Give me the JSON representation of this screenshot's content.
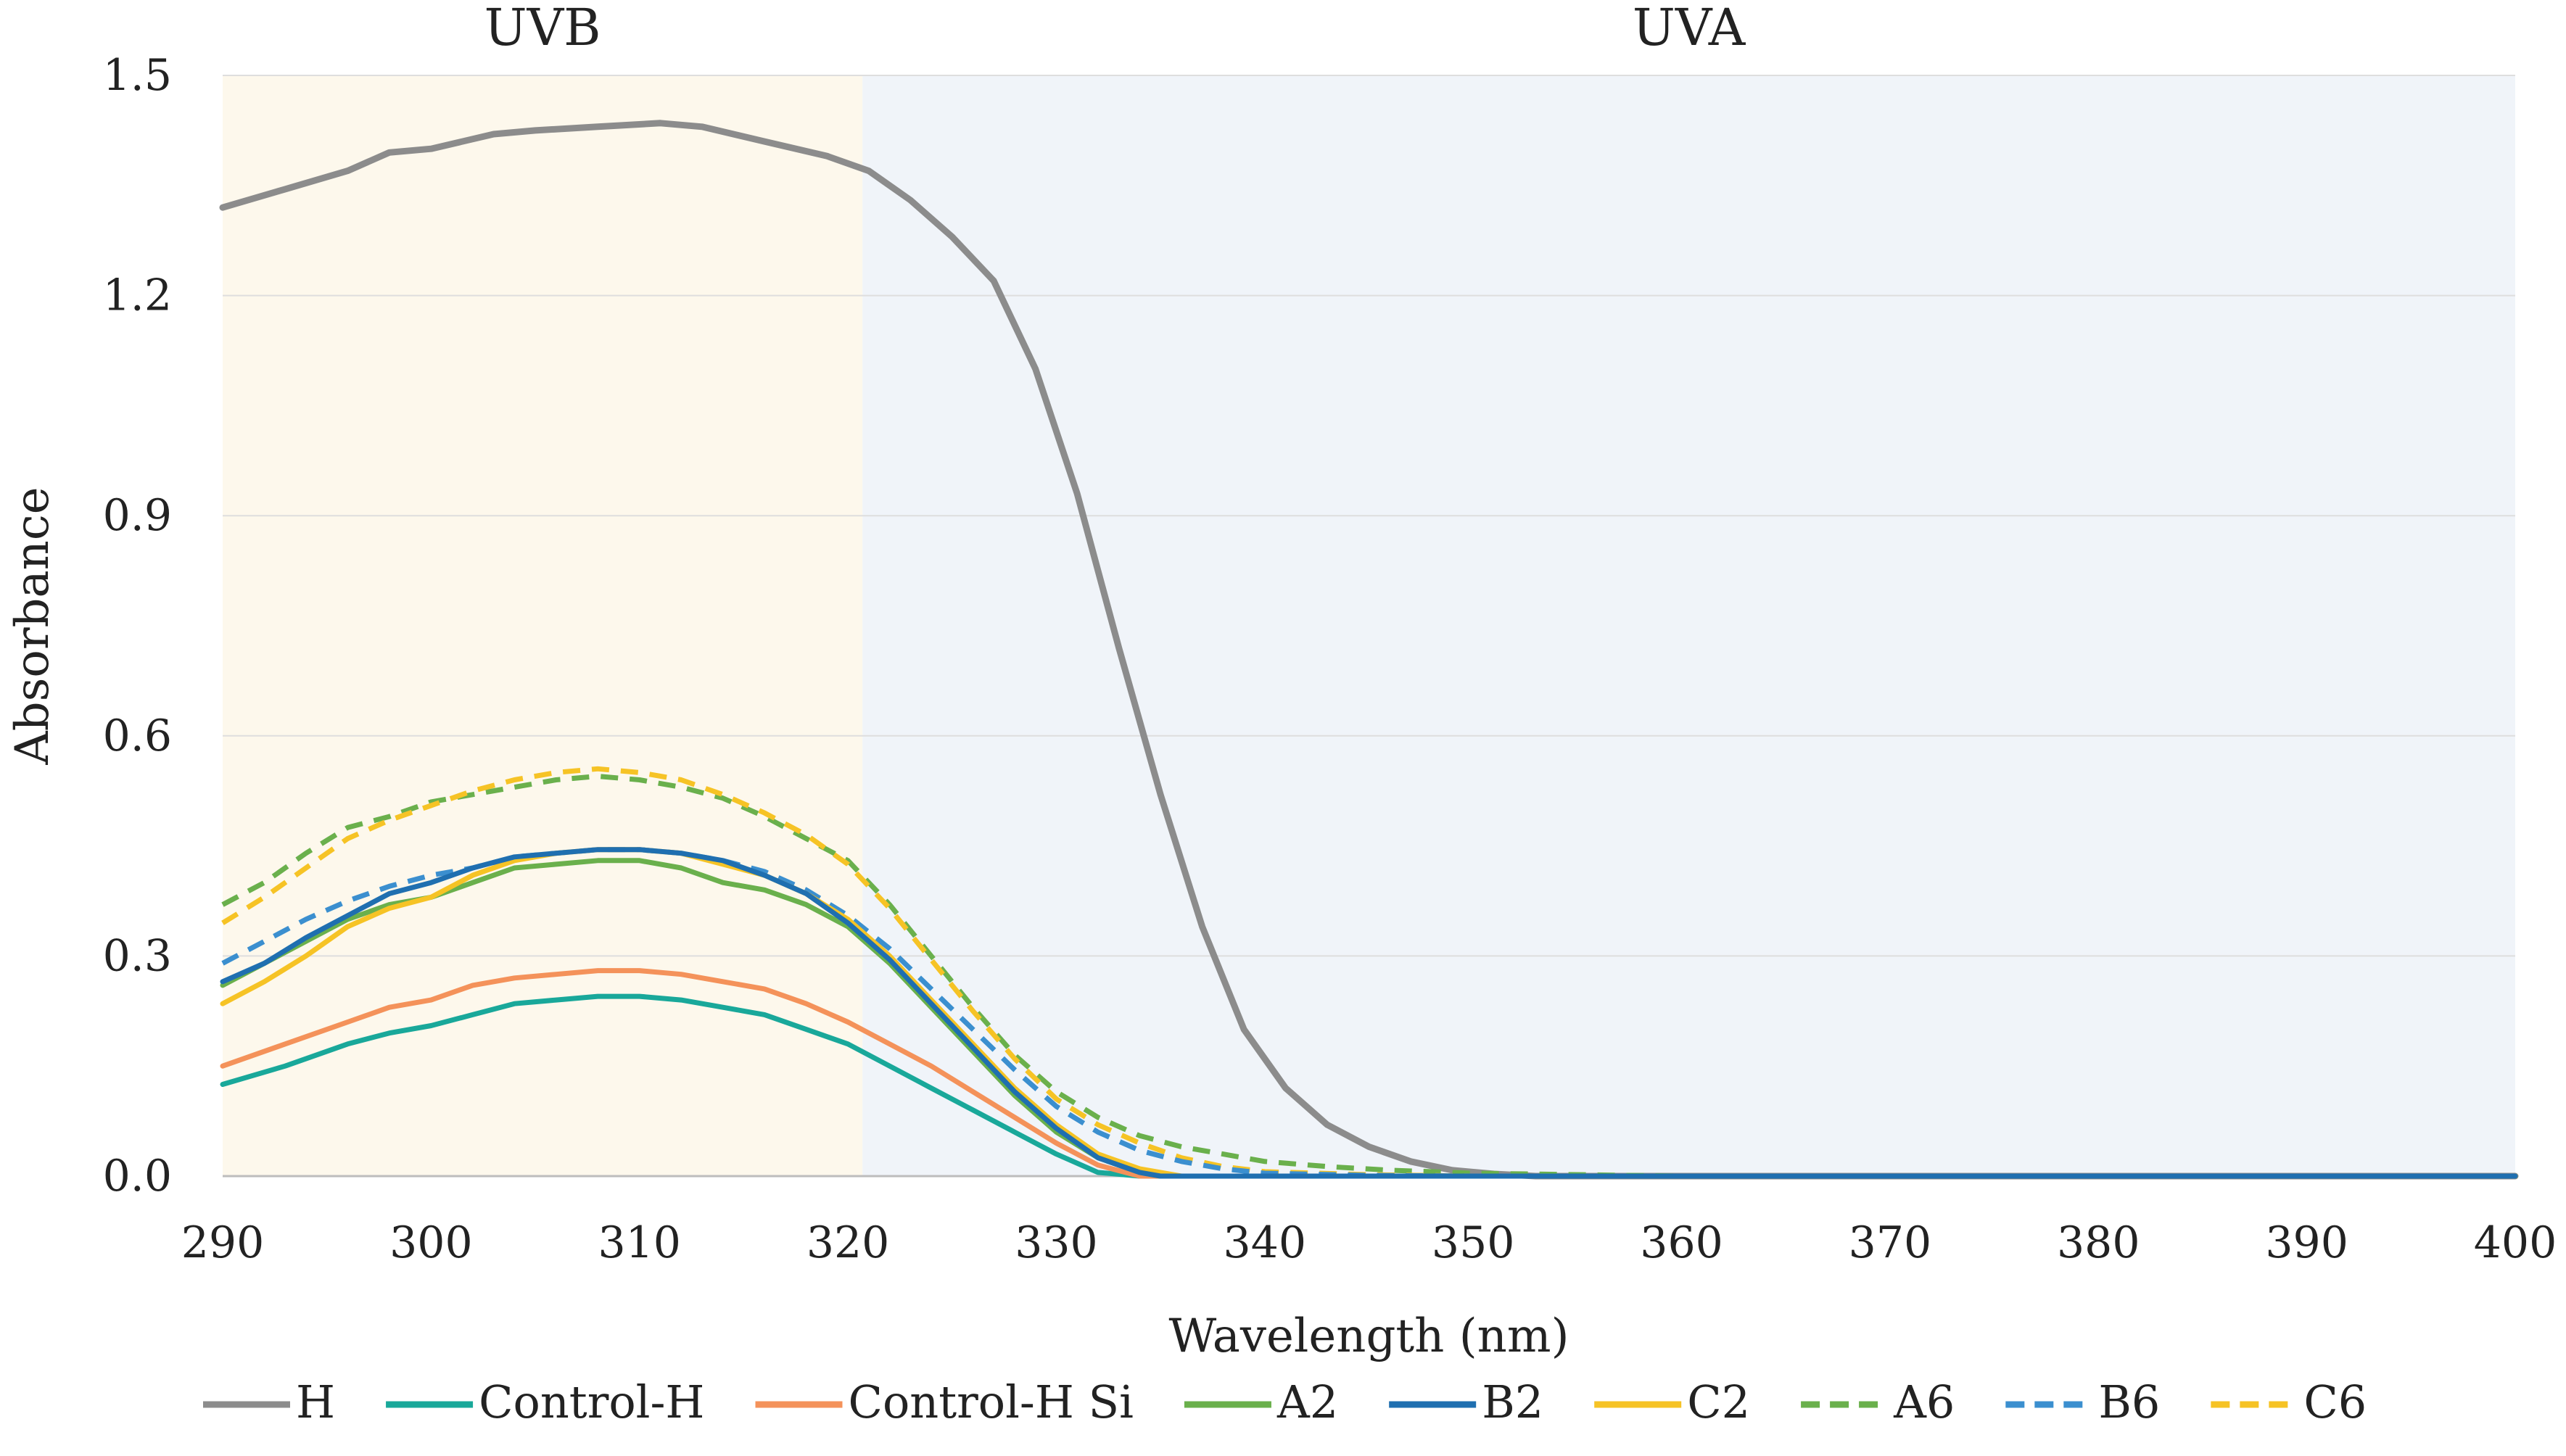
{
  "chart_data": {
    "type": "line",
    "title": "",
    "xlabel": "Wavelength (nm)",
    "ylabel": "Absorbance",
    "xlim": [
      290,
      400
    ],
    "ylim": [
      0.0,
      1.5
    ],
    "xticks": [
      290,
      300,
      310,
      320,
      330,
      340,
      350,
      360,
      370,
      380,
      390,
      400
    ],
    "yticks": [
      "0.0",
      "0.3",
      "0.6",
      "0.9",
      "1.2",
      "1.5"
    ],
    "grid": "horizontal",
    "legend_position": "bottom",
    "regions": [
      {
        "label": "UVB",
        "from": 290,
        "to": 320.7,
        "color": "#fdf8ec"
      },
      {
        "label": "UVA",
        "from": 320.7,
        "to": 400,
        "color": "#f0f4f9"
      }
    ],
    "series": [
      {
        "name": "H",
        "color": "#8c8c8c",
        "dash": "solid",
        "x": [
          290,
          293,
          296,
          298,
          300,
          303,
          305,
          308,
          311,
          313,
          316,
          319,
          321,
          323,
          325,
          327,
          329,
          331,
          333,
          335,
          337,
          339,
          341,
          343,
          345,
          347,
          349,
          351,
          353,
          355,
          360,
          370,
          380,
          390,
          400
        ],
        "y": [
          1.32,
          1.345,
          1.37,
          1.395,
          1.4,
          1.42,
          1.425,
          1.43,
          1.435,
          1.43,
          1.41,
          1.39,
          1.37,
          1.33,
          1.28,
          1.22,
          1.1,
          0.93,
          0.72,
          0.52,
          0.34,
          0.2,
          0.12,
          0.07,
          0.04,
          0.02,
          0.008,
          0.003,
          0.0,
          0.0,
          0.0,
          0.0,
          0.0,
          0.0,
          0.0
        ]
      },
      {
        "name": "Control-H",
        "color": "#19a89a",
        "dash": "solid",
        "x": [
          290,
          293,
          296,
          298,
          300,
          302,
          304,
          306,
          308,
          310,
          312,
          314,
          316,
          318,
          320,
          322,
          324,
          326,
          328,
          330,
          332,
          334,
          340,
          350,
          360,
          370,
          380,
          390,
          400
        ],
        "y": [
          0.125,
          0.15,
          0.18,
          0.195,
          0.205,
          0.22,
          0.235,
          0.24,
          0.245,
          0.245,
          0.24,
          0.23,
          0.22,
          0.2,
          0.18,
          0.15,
          0.12,
          0.09,
          0.06,
          0.03,
          0.005,
          0.0,
          0.0,
          0.0,
          0.0,
          0.0,
          0.0,
          0.0,
          0.0
        ]
      },
      {
        "name": "Control-H Si",
        "color": "#f4925a",
        "dash": "solid",
        "x": [
          290,
          293,
          296,
          298,
          300,
          302,
          304,
          306,
          308,
          310,
          312,
          314,
          316,
          318,
          320,
          322,
          324,
          326,
          328,
          330,
          332,
          334,
          340,
          350,
          360,
          370,
          380,
          390,
          400
        ],
        "y": [
          0.15,
          0.18,
          0.21,
          0.23,
          0.24,
          0.26,
          0.27,
          0.275,
          0.28,
          0.28,
          0.275,
          0.265,
          0.255,
          0.235,
          0.21,
          0.18,
          0.15,
          0.115,
          0.08,
          0.045,
          0.015,
          0.0,
          0.0,
          0.0,
          0.0,
          0.0,
          0.0,
          0.0,
          0.0
        ]
      },
      {
        "name": "A2",
        "color": "#6ab04c",
        "dash": "solid",
        "x": [
          290,
          292,
          294,
          296,
          298,
          300,
          302,
          304,
          306,
          308,
          310,
          312,
          314,
          316,
          318,
          320,
          322,
          324,
          326,
          328,
          330,
          332,
          334,
          335,
          340,
          350,
          360,
          370,
          380,
          390,
          400
        ],
        "y": [
          0.26,
          0.29,
          0.32,
          0.35,
          0.37,
          0.38,
          0.4,
          0.42,
          0.425,
          0.43,
          0.43,
          0.42,
          0.4,
          0.39,
          0.37,
          0.34,
          0.29,
          0.23,
          0.17,
          0.11,
          0.06,
          0.025,
          0.005,
          0.0,
          0.0,
          0.0,
          0.0,
          0.0,
          0.0,
          0.0,
          0.0
        ]
      },
      {
        "name": "B2",
        "color": "#1f6fb0",
        "dash": "solid",
        "x": [
          290,
          292,
          294,
          296,
          298,
          300,
          302,
          304,
          306,
          308,
          310,
          312,
          314,
          316,
          318,
          320,
          322,
          324,
          326,
          328,
          330,
          332,
          334,
          335,
          340,
          350,
          360,
          370,
          380,
          390,
          400
        ],
        "y": [
          0.265,
          0.29,
          0.325,
          0.355,
          0.385,
          0.4,
          0.42,
          0.435,
          0.44,
          0.445,
          0.445,
          0.44,
          0.43,
          0.41,
          0.385,
          0.345,
          0.295,
          0.235,
          0.175,
          0.115,
          0.065,
          0.025,
          0.005,
          0.0,
          0.0,
          0.0,
          0.0,
          0.0,
          0.0,
          0.0,
          0.0
        ]
      },
      {
        "name": "C2",
        "color": "#f6c325",
        "dash": "solid",
        "x": [
          290,
          292,
          294,
          296,
          298,
          300,
          302,
          304,
          306,
          308,
          310,
          312,
          314,
          316,
          318,
          320,
          322,
          324,
          326,
          328,
          330,
          332,
          334,
          336,
          340,
          350,
          360,
          370,
          380,
          390,
          400
        ],
        "y": [
          0.235,
          0.265,
          0.3,
          0.34,
          0.365,
          0.38,
          0.41,
          0.43,
          0.44,
          0.445,
          0.445,
          0.44,
          0.425,
          0.41,
          0.385,
          0.35,
          0.3,
          0.24,
          0.18,
          0.12,
          0.07,
          0.03,
          0.01,
          0.0,
          0.0,
          0.0,
          0.0,
          0.0,
          0.0,
          0.0,
          0.0
        ]
      },
      {
        "name": "A6",
        "color": "#6ab04c",
        "dash": "dashed",
        "x": [
          290,
          292,
          294,
          296,
          298,
          300,
          302,
          304,
          306,
          308,
          310,
          312,
          314,
          316,
          318,
          320,
          322,
          324,
          326,
          328,
          330,
          332,
          334,
          336,
          338,
          340,
          343,
          346,
          350,
          355,
          360,
          370,
          380,
          390,
          400
        ],
        "y": [
          0.37,
          0.4,
          0.44,
          0.475,
          0.49,
          0.51,
          0.52,
          0.53,
          0.54,
          0.545,
          0.54,
          0.53,
          0.515,
          0.49,
          0.46,
          0.43,
          0.37,
          0.3,
          0.23,
          0.165,
          0.115,
          0.08,
          0.055,
          0.04,
          0.03,
          0.02,
          0.013,
          0.008,
          0.004,
          0.002,
          0.0,
          0.0,
          0.0,
          0.0,
          0.0
        ]
      },
      {
        "name": "B6",
        "color": "#3b8fcf",
        "dash": "dashed",
        "x": [
          290,
          292,
          294,
          296,
          298,
          300,
          302,
          304,
          306,
          308,
          310,
          312,
          314,
          316,
          318,
          320,
          322,
          324,
          326,
          328,
          330,
          332,
          334,
          336,
          338,
          340,
          345,
          350,
          360,
          370,
          380,
          390,
          400
        ],
        "y": [
          0.29,
          0.32,
          0.35,
          0.375,
          0.395,
          0.41,
          0.42,
          0.435,
          0.44,
          0.445,
          0.445,
          0.44,
          0.43,
          0.415,
          0.39,
          0.355,
          0.31,
          0.255,
          0.2,
          0.145,
          0.095,
          0.06,
          0.035,
          0.02,
          0.01,
          0.004,
          0.001,
          0.0,
          0.0,
          0.0,
          0.0,
          0.0,
          0.0
        ]
      },
      {
        "name": "C6",
        "color": "#f6c325",
        "dash": "dashed",
        "x": [
          290,
          292,
          294,
          296,
          298,
          300,
          302,
          304,
          306,
          308,
          310,
          312,
          314,
          316,
          318,
          320,
          322,
          324,
          326,
          328,
          330,
          332,
          334,
          336,
          338,
          340,
          345,
          350,
          360,
          370,
          380,
          390,
          400
        ],
        "y": [
          0.345,
          0.38,
          0.42,
          0.46,
          0.485,
          0.505,
          0.525,
          0.54,
          0.55,
          0.555,
          0.55,
          0.54,
          0.52,
          0.495,
          0.465,
          0.425,
          0.365,
          0.295,
          0.225,
          0.16,
          0.105,
          0.07,
          0.045,
          0.025,
          0.013,
          0.006,
          0.002,
          0.0,
          0.0,
          0.0,
          0.0,
          0.0,
          0.0
        ]
      }
    ]
  }
}
